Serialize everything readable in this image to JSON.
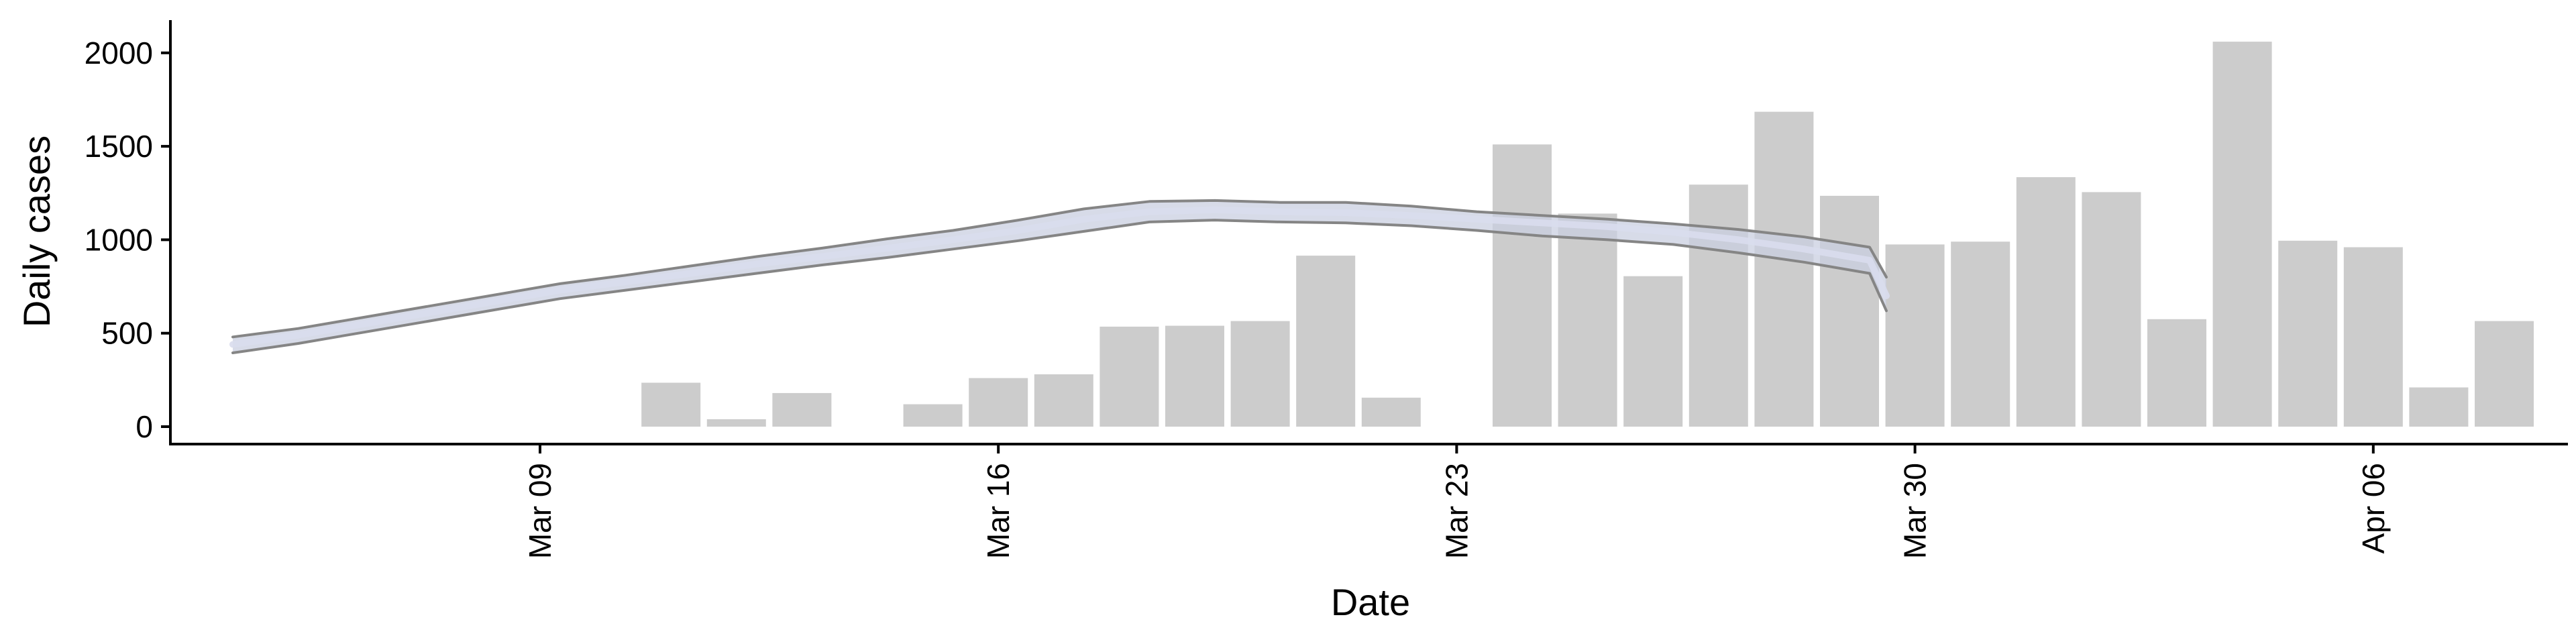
{
  "chart_data": {
    "type": "bar",
    "xlabel": "Date",
    "ylabel": "Daily cases",
    "ylim": [
      -95,
      2160
    ],
    "x_ticks": [
      {
        "label": "Mar 09",
        "day": 8
      },
      {
        "label": "Mar 16",
        "day": 15
      },
      {
        "label": "Mar 23",
        "day": 22
      },
      {
        "label": "Mar 30",
        "day": 29
      },
      {
        "label": "Apr 06",
        "day": 36
      }
    ],
    "y_ticks": [
      0,
      500,
      1000,
      1500,
      2000
    ],
    "bars": {
      "dates": [
        "Mar 10",
        "Mar 11",
        "Mar 12",
        "Mar 14",
        "Mar 15",
        "Mar 16",
        "Mar 17",
        "Mar 18",
        "Mar 19",
        "Mar 20",
        "Mar 21",
        "Mar 23",
        "Mar 24",
        "Mar 25",
        "Mar 26",
        "Mar 27",
        "Mar 28",
        "Mar 29",
        "Mar 30",
        "Mar 31",
        "Apr 01",
        "Apr 02",
        "Apr 03",
        "Apr 04",
        "Apr 05",
        "Apr 06",
        "Apr 07"
      ],
      "days": [
        9,
        10,
        11,
        13,
        14,
        15,
        16,
        17,
        18,
        19,
        20,
        22,
        23,
        24,
        25,
        26,
        27,
        28,
        29,
        30,
        31,
        32,
        33,
        34,
        35,
        36,
        37
      ],
      "values": [
        235,
        40,
        180,
        120,
        260,
        280,
        535,
        540,
        565,
        915,
        155,
        1510,
        1140,
        805,
        1295,
        1685,
        1235,
        975,
        990,
        1335,
        1255,
        575,
        2060,
        995,
        960,
        210,
        565
      ],
      "color": "#cccccc"
    },
    "smoothed": {
      "days": [
        3,
        4,
        5,
        6,
        7,
        8,
        9,
        10,
        11,
        12,
        13,
        14,
        15,
        16,
        17,
        18,
        19,
        20,
        21,
        22,
        23,
        24,
        25,
        26,
        27,
        28
      ],
      "mean": [
        440,
        490,
        550,
        610,
        670,
        730,
        775,
        820,
        870,
        910,
        955,
        1000,
        1050,
        1110,
        1150,
        1160,
        1150,
        1145,
        1130,
        1110,
        1090,
        1070,
        1040,
        1000,
        950,
        890
      ],
      "upper": [
        480,
        525,
        585,
        645,
        705,
        765,
        810,
        860,
        910,
        955,
        1005,
        1050,
        1105,
        1165,
        1205,
        1210,
        1200,
        1200,
        1180,
        1150,
        1130,
        1110,
        1085,
        1055,
        1015,
        960
      ],
      "lower": [
        395,
        445,
        505,
        565,
        625,
        685,
        730,
        775,
        820,
        865,
        905,
        950,
        995,
        1045,
        1095,
        1105,
        1095,
        1090,
        1075,
        1050,
        1020,
        1000,
        975,
        930,
        880,
        820
      ],
      "end": {
        "mean": 700,
        "upper": 800,
        "lower": 620
      },
      "band_color": "#c9cfe0",
      "line_color": "#858585"
    }
  }
}
